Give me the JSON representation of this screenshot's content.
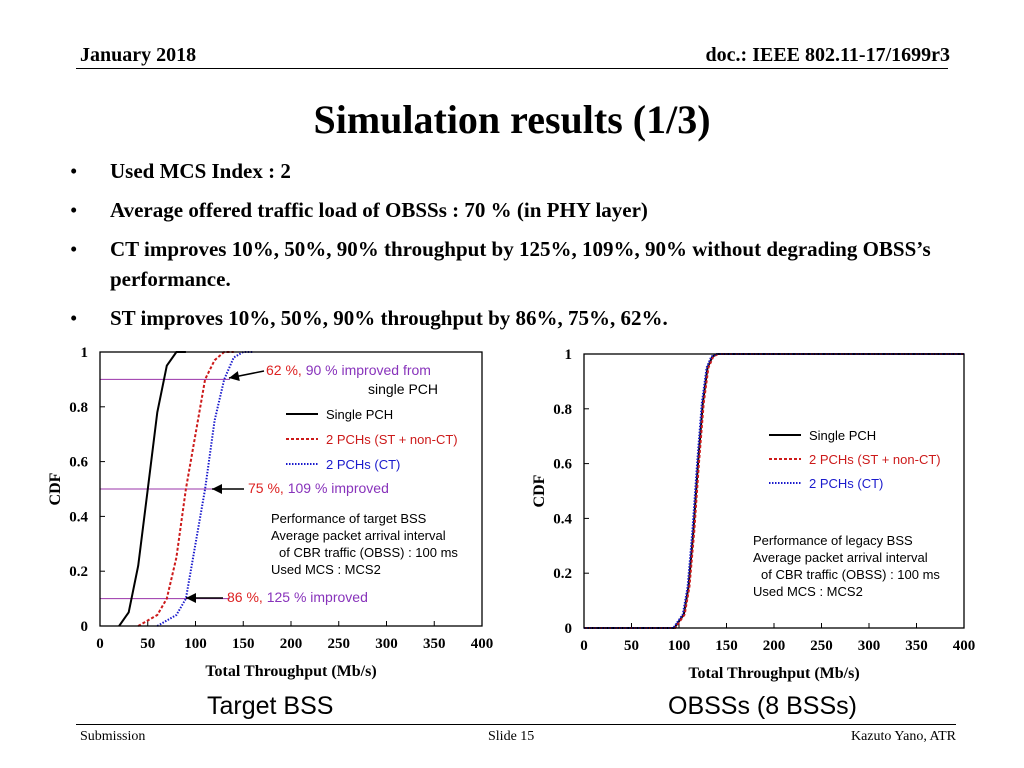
{
  "header": {
    "date": "January 2018",
    "doc": "doc.: IEEE 802.11-17/1699r3"
  },
  "title": "Simulation results (1/3)",
  "bullets": [
    "Used MCS Index : 2",
    "Average offered traffic load of OBSSs : 70 % (in PHY layer)",
    "CT improves 10%, 50%, 90% throughput by 125%, 109%, 90% without degrading OBSS’s performance.",
    "ST improves 10%, 50%, 90% throughput by 86%, 75%, 62%."
  ],
  "bullet_symbol": "•",
  "colors": {
    "single": "#000000",
    "st": "#cc1a1a",
    "ct": "#1a1acc",
    "purple": "#9933aa",
    "ann_red": "#dd2222",
    "ann_purple": "#8833bb"
  },
  "chart_data": [
    {
      "type": "line",
      "title": "Target BSS",
      "xlabel": "Total Throughput (Mb/s)",
      "ylabel": "CDF",
      "xlim": [
        0,
        400
      ],
      "ylim": [
        0,
        1
      ],
      "xticks": [
        "0",
        "50",
        "100",
        "150",
        "200",
        "250",
        "300",
        "350",
        "400"
      ],
      "yticks": [
        "0",
        "0.2",
        "0.4",
        "0.6",
        "0.8",
        "1"
      ],
      "series": [
        {
          "name": "Single PCH",
          "style": "solid",
          "color": "#000000",
          "x": [
            20,
            30,
            40,
            50,
            60,
            70,
            80,
            90
          ],
          "y": [
            0,
            0.05,
            0.22,
            0.5,
            0.78,
            0.95,
            1,
            1
          ]
        },
        {
          "name": "2 PCHs (ST + non-CT)",
          "style": "dashed",
          "color": "#cc1a1a",
          "x": [
            40,
            60,
            70,
            80,
            90,
            100,
            110,
            120,
            130,
            140
          ],
          "y": [
            0,
            0.04,
            0.1,
            0.25,
            0.5,
            0.7,
            0.9,
            0.97,
            1,
            1
          ]
        },
        {
          "name": "2 PCHs (CT)",
          "style": "dotted",
          "color": "#1a1acc",
          "x": [
            60,
            80,
            90,
            100,
            110,
            120,
            130,
            140,
            150,
            160
          ],
          "y": [
            0,
            0.04,
            0.1,
            0.3,
            0.5,
            0.75,
            0.9,
            0.98,
            1,
            1
          ]
        }
      ],
      "reference_lines": [
        0.9,
        0.5,
        0.1
      ],
      "annotations": [
        {
          "parts": [
            {
              "text": "62 %, ",
              "color": "#dd2222"
            },
            {
              "text": "90 % improved from",
              "color": "#8833bb"
            }
          ],
          "line2": "single PCH"
        },
        {
          "parts": [
            {
              "text": "75 %, ",
              "color": "#dd2222"
            },
            {
              "text": "109 % improved",
              "color": "#8833bb"
            }
          ]
        },
        {
          "parts": [
            {
              "text": "86 %, ",
              "color": "#dd2222"
            },
            {
              "text": "125 % improved",
              "color": "#8833bb"
            }
          ]
        }
      ],
      "note": [
        "Performance of target BSS",
        "Average packet arrival interval",
        "of CBR traffic (OBSS) : 100 ms",
        "Used MCS : MCS2"
      ]
    },
    {
      "type": "line",
      "title": "OBSSs (8 BSSs)",
      "xlabel": "Total Throughput (Mb/s)",
      "ylabel": "CDF",
      "xlim": [
        0,
        400
      ],
      "ylim": [
        0,
        1
      ],
      "xticks": [
        "0",
        "50",
        "100",
        "150",
        "200",
        "250",
        "300",
        "350",
        "400"
      ],
      "yticks": [
        "0",
        "0.2",
        "0.4",
        "0.6",
        "0.8",
        "1"
      ],
      "series": [
        {
          "name": "Single PCH",
          "style": "solid",
          "color": "#000000",
          "x": [
            0,
            95,
            105,
            110,
            115,
            120,
            125,
            130,
            135,
            140,
            400
          ],
          "y": [
            0,
            0,
            0.05,
            0.15,
            0.35,
            0.6,
            0.82,
            0.95,
            0.99,
            1,
            1
          ]
        },
        {
          "name": "2 PCHs (ST + non-CT)",
          "style": "dashed",
          "color": "#cc1a1a",
          "x": [
            0,
            96,
            106,
            111,
            116,
            121,
            126,
            131,
            136,
            141,
            400
          ],
          "y": [
            0,
            0,
            0.05,
            0.15,
            0.35,
            0.6,
            0.82,
            0.95,
            0.99,
            1,
            1
          ]
        },
        {
          "name": "2 PCHs (CT)",
          "style": "dotted",
          "color": "#1a1acc",
          "x": [
            0,
            94,
            104,
            109,
            114,
            119,
            124,
            129,
            134,
            139,
            400
          ],
          "y": [
            0,
            0,
            0.05,
            0.15,
            0.35,
            0.6,
            0.82,
            0.95,
            0.99,
            1,
            1
          ]
        }
      ],
      "note": [
        "Performance of legacy BSS",
        "Average packet arrival interval",
        "of CBR traffic (OBSS) : 100 ms",
        "Used MCS : MCS2"
      ]
    }
  ],
  "footer": {
    "left": "Submission",
    "center": "Slide 15",
    "right": "Kazuto Yano, ATR"
  }
}
